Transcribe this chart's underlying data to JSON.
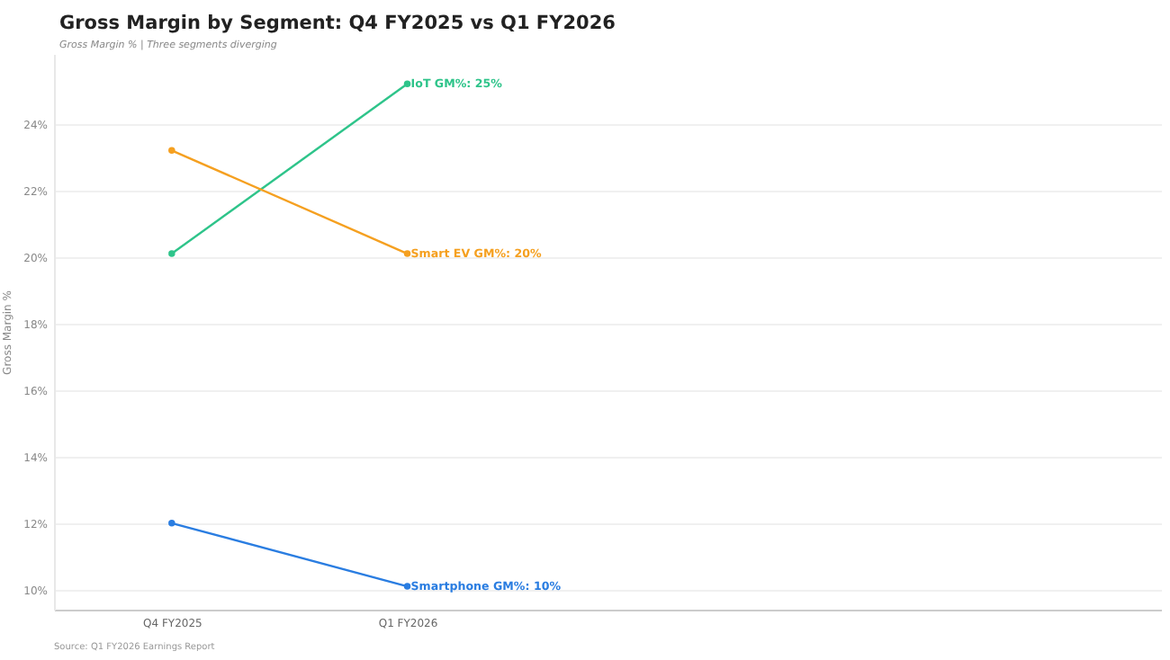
{
  "chart_data": {
    "type": "line",
    "title": "Gross Margin by Segment: Q4 FY2025 vs Q1 FY2026",
    "subtitle": "Gross Margin % | Three segments diverging",
    "ylabel": "Gross Margin %",
    "categories": [
      "Q4 FY2025",
      "Q1 FY2026"
    ],
    "series": [
      {
        "color": "#2ec48a",
        "values": [
          20.1,
          25.2
        ]
      },
      {
        "color": "#f5a020",
        "values": [
          23.2,
          20.1
        ]
      },
      {
        "color": "#2a7de1",
        "values": [
          12.0,
          10.1
        ]
      }
    ],
    "ylim": [
      9.4,
      26.1
    ],
    "yticks": [
      {
        "value": 10,
        "label": "10%"
      },
      {
        "value": 12,
        "label": "12%"
      },
      {
        "value": 14,
        "label": "14%"
      },
      {
        "value": 16,
        "label": "16%"
      },
      {
        "value": 18,
        "label": "18%"
      },
      {
        "value": 20,
        "label": "20%"
      },
      {
        "value": 22,
        "label": "22%"
      },
      {
        "value": 24,
        "label": "24%"
      }
    ],
    "grid": "y",
    "marker": "circle",
    "line_style": "solid",
    "legend": false,
    "annotations": [
      {
        "text": "IoT GM%: 25%",
        "x": "Q1 FY2026",
        "y": 25.2
      },
      {
        "text": "Smart EV GM%: 20%",
        "x": "Q1 FY2026",
        "y": 20.1
      },
      {
        "text": "Smartphone GM%: 10%",
        "x": "Q1 FY2026",
        "y": 10.1
      },
      "Source: Q1 FY2026 Earnings Report"
    ]
  }
}
